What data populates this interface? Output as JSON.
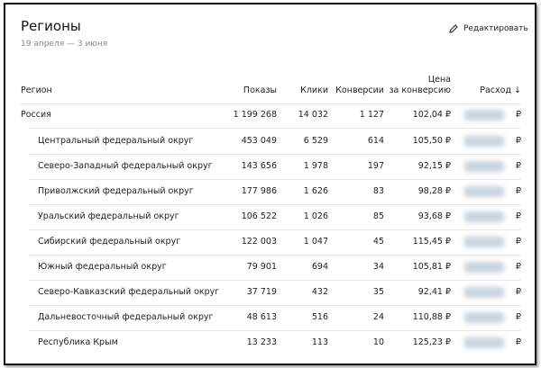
{
  "header": {
    "title": "Регионы",
    "subtitle": "19 апреля — 3 июня",
    "edit": "Редактировать"
  },
  "table": {
    "columns": [
      "Регион",
      "Показы",
      "Клики",
      "Конверсии",
      "Цена\nза конверсию",
      "Расход ↓"
    ],
    "rows": [
      [
        "Россия",
        "1 199 268",
        "14 032",
        "1 127",
        "102,04 ₽",
        "₽"
      ],
      [
        "Центральный федеральный округ",
        "453 049",
        "6 529",
        "614",
        "105,50 ₽",
        "₽"
      ],
      [
        "Северо-Западный федеральный округ",
        "143 656",
        "1 978",
        "197",
        "92,15 ₽",
        "₽"
      ],
      [
        "Приволжский федеральный округ",
        "177 986",
        "1 626",
        "83",
        "98,28 ₽",
        "₽"
      ],
      [
        "Уральский федеральный округ",
        "106 522",
        "1 026",
        "85",
        "93,68 ₽",
        "₽"
      ],
      [
        "Сибирский федеральный округ",
        "122 003",
        "1 047",
        "45",
        "115,45 ₽",
        "₽"
      ],
      [
        "Южный федеральный округ",
        "79 901",
        "694",
        "34",
        "105,81 ₽",
        "₽"
      ],
      [
        "Северо-Кавказский федеральный округ",
        "37 719",
        "432",
        "35",
        "92,41 ₽",
        "₽"
      ],
      [
        "Дальневосточный федеральный округ",
        "48 613",
        "516",
        "24",
        "110,88 ₽",
        "₽"
      ],
      [
        "Республика Крым",
        "13 233",
        "113",
        "10",
        "125,23 ₽",
        "₽"
      ]
    ]
  }
}
